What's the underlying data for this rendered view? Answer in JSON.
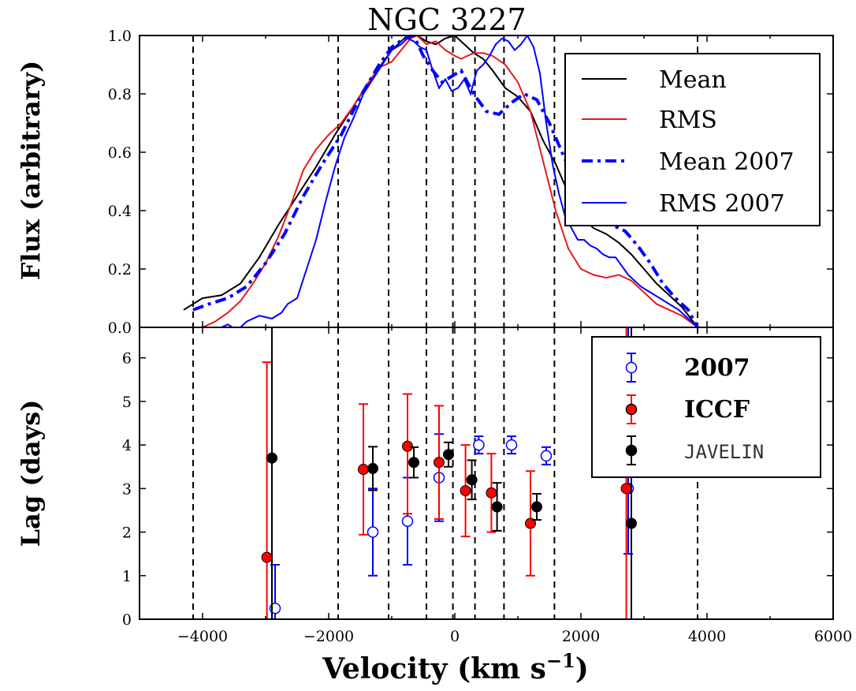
{
  "chart_data": [
    {
      "type": "line",
      "title": "NGC 3227",
      "ylabel": "Flux (arbitrary)",
      "xlim": [
        -5000,
        6000
      ],
      "ylim": [
        0.0,
        1.0
      ],
      "yticks": [
        "0.0",
        "0.2",
        "0.4",
        "0.6",
        "0.8",
        "1.0"
      ],
      "grid": false,
      "legend_position": "top-right",
      "vlines": [
        -4150,
        -1850,
        -1050,
        -450,
        -30,
        320,
        780,
        1580,
        3850
      ],
      "series": [
        {
          "name": "Mean",
          "color": "#000000",
          "style": "solid",
          "x": [
            -4300,
            -4000,
            -3700,
            -3400,
            -3100,
            -2800,
            -2500,
            -2200,
            -1900,
            -1600,
            -1300,
            -1000,
            -800,
            -600,
            -450,
            -300,
            -150,
            0,
            150,
            300,
            450,
            600,
            800,
            1000,
            1200,
            1400,
            1600,
            1800,
            2000,
            2200,
            2400,
            2600,
            2800,
            3000,
            3200,
            3400,
            3600,
            3850
          ],
          "y": [
            0.06,
            0.1,
            0.11,
            0.15,
            0.24,
            0.35,
            0.45,
            0.55,
            0.66,
            0.76,
            0.86,
            0.95,
            0.99,
            1.0,
            0.98,
            0.97,
            0.99,
            1.0,
            0.97,
            0.94,
            0.92,
            0.88,
            0.82,
            0.79,
            0.74,
            0.64,
            0.56,
            0.46,
            0.38,
            0.34,
            0.32,
            0.29,
            0.25,
            0.2,
            0.15,
            0.11,
            0.07,
            0.0
          ]
        },
        {
          "name": "RMS",
          "color": "#e31a1c",
          "style": "solid",
          "x": [
            -4000,
            -3800,
            -3600,
            -3400,
            -3200,
            -3000,
            -2800,
            -2600,
            -2400,
            -2200,
            -2000,
            -1800,
            -1600,
            -1400,
            -1200,
            -1000,
            -850,
            -700,
            -600,
            -450,
            -300,
            -150,
            0,
            100,
            200,
            300,
            450,
            600,
            800,
            1000,
            1200,
            1400,
            1600,
            1800,
            2000,
            2200,
            2400,
            2600,
            2800,
            3000,
            3200,
            3400,
            3600,
            3850
          ],
          "y": [
            0.0,
            0.02,
            0.05,
            0.09,
            0.15,
            0.22,
            0.31,
            0.42,
            0.54,
            0.61,
            0.66,
            0.7,
            0.76,
            0.83,
            0.89,
            0.91,
            0.95,
            0.99,
            1.0,
            0.97,
            0.98,
            0.95,
            0.93,
            0.92,
            0.93,
            0.94,
            0.94,
            0.93,
            0.9,
            0.84,
            0.74,
            0.57,
            0.4,
            0.27,
            0.2,
            0.18,
            0.17,
            0.18,
            0.16,
            0.12,
            0.08,
            0.06,
            0.04,
            0.0
          ]
        },
        {
          "name": "Mean 2007",
          "color": "#0000ff",
          "style": "dash-dot",
          "x": [
            -4150,
            -3900,
            -3600,
            -3300,
            -3000,
            -2700,
            -2400,
            -2100,
            -1800,
            -1500,
            -1200,
            -1000,
            -800,
            -650,
            -500,
            -350,
            -200,
            -50,
            100,
            300,
            500,
            700,
            900,
            1100,
            1300,
            1500,
            1700,
            1900,
            2100,
            2300,
            2500,
            2700,
            2900,
            3100,
            3300,
            3500,
            3700,
            3850
          ],
          "y": [
            0.06,
            0.08,
            0.1,
            0.14,
            0.22,
            0.32,
            0.45,
            0.56,
            0.66,
            0.79,
            0.9,
            0.96,
            0.99,
            1.0,
            0.93,
            0.88,
            0.84,
            0.86,
            0.88,
            0.8,
            0.74,
            0.73,
            0.77,
            0.8,
            0.78,
            0.7,
            0.6,
            0.5,
            0.42,
            0.38,
            0.35,
            0.33,
            0.28,
            0.22,
            0.15,
            0.1,
            0.06,
            0.0
          ]
        },
        {
          "name": "RMS 2007",
          "color": "#0000ff",
          "style": "solid",
          "x": [
            -3700,
            -3600,
            -3450,
            -3300,
            -3100,
            -2900,
            -2750,
            -2650,
            -2500,
            -2350,
            -2200,
            -2050,
            -1900,
            -1750,
            -1600,
            -1450,
            -1300,
            -1150,
            -1000,
            -850,
            -750,
            -650,
            -550,
            -450,
            -350,
            -250,
            -150,
            -50,
            50,
            150,
            250,
            350,
            450,
            550,
            650,
            750,
            850,
            950,
            1050,
            1150,
            1250,
            1350,
            1450,
            1550,
            1650,
            1750,
            1850,
            1950,
            2050,
            2150,
            2250,
            2350,
            2450,
            2550,
            2650,
            2750,
            2850,
            2950,
            3100,
            3250,
            3400,
            3550,
            3700,
            3850
          ],
          "y": [
            0.0,
            0.01,
            -0.01,
            0.02,
            0.04,
            0.03,
            0.05,
            0.08,
            0.1,
            0.2,
            0.3,
            0.43,
            0.55,
            0.65,
            0.72,
            0.8,
            0.85,
            0.9,
            0.95,
            0.97,
            0.99,
            0.98,
            0.96,
            0.95,
            0.88,
            0.82,
            0.85,
            0.81,
            0.82,
            0.85,
            0.8,
            0.88,
            0.9,
            0.93,
            0.97,
            0.99,
            0.98,
            0.95,
            0.97,
            1.0,
            0.96,
            0.87,
            0.7,
            0.56,
            0.46,
            0.38,
            0.34,
            0.3,
            0.3,
            0.28,
            0.27,
            0.25,
            0.24,
            0.24,
            0.21,
            0.18,
            0.16,
            0.14,
            0.12,
            0.1,
            0.08,
            0.06,
            0.03,
            0.0
          ]
        }
      ]
    },
    {
      "type": "scatter",
      "ylabel": "Lag (days)",
      "xlabel": "Velocity (km s",
      "xlabel_exponent": "−1",
      "xlabel_close": ")",
      "xlim": [
        -5000,
        6000
      ],
      "ylim": [
        0,
        6.7
      ],
      "xticks": [
        "−4000",
        "−2000",
        "0",
        "2000",
        "4000",
        "6000"
      ],
      "yticks": [
        "0",
        "1",
        "2",
        "3",
        "4",
        "5",
        "6"
      ],
      "grid": false,
      "legend_position": "top-right",
      "vlines": [
        -4150,
        -1850,
        -1050,
        -450,
        -30,
        320,
        780,
        1580,
        3850
      ],
      "series": [
        {
          "name": "2007",
          "color": "#0000ff",
          "marker": "open-circle",
          "x": [
            -2850,
            -1300,
            -750,
            -250,
            380,
            900,
            1450,
            2750
          ],
          "y": [
            0.25,
            2.0,
            2.25,
            3.25,
            4.0,
            4.0,
            3.75,
            3.0
          ],
          "yerr_low": [
            0.25,
            1.0,
            1.0,
            1.0,
            0.2,
            0.2,
            0.2,
            1.5
          ],
          "yerr_high": [
            1.0,
            1.0,
            1.0,
            1.0,
            0.2,
            0.2,
            0.2,
            3.7
          ]
        },
        {
          "name": "ICCF",
          "color": "#ff0000",
          "marker": "filled-circle",
          "x": [
            -2980,
            -1450,
            -750,
            -250,
            170,
            580,
            1200,
            2720
          ],
          "y": [
            1.42,
            3.44,
            3.97,
            3.6,
            2.95,
            2.9,
            2.2,
            3.0
          ],
          "yerr_low": [
            1.42,
            1.5,
            1.55,
            1.3,
            1.05,
            0.9,
            1.2,
            3.0
          ],
          "yerr_high": [
            4.48,
            1.5,
            1.2,
            1.3,
            1.05,
            0.9,
            1.2,
            3.7
          ]
        },
        {
          "name": "JAVELIN",
          "color": "#000000",
          "marker": "filled-circle",
          "x": [
            -2900,
            -1300,
            -650,
            -100,
            270,
            670,
            1300,
            2800
          ],
          "y": [
            3.7,
            3.46,
            3.6,
            3.78,
            3.2,
            2.58,
            2.58,
            2.2
          ],
          "yerr_low": [
            3.7,
            0.5,
            0.35,
            0.28,
            0.45,
            0.55,
            0.3,
            2.2
          ],
          "yerr_high": [
            3.0,
            0.5,
            0.35,
            0.28,
            0.45,
            0.55,
            0.3,
            4.5
          ]
        }
      ]
    }
  ]
}
